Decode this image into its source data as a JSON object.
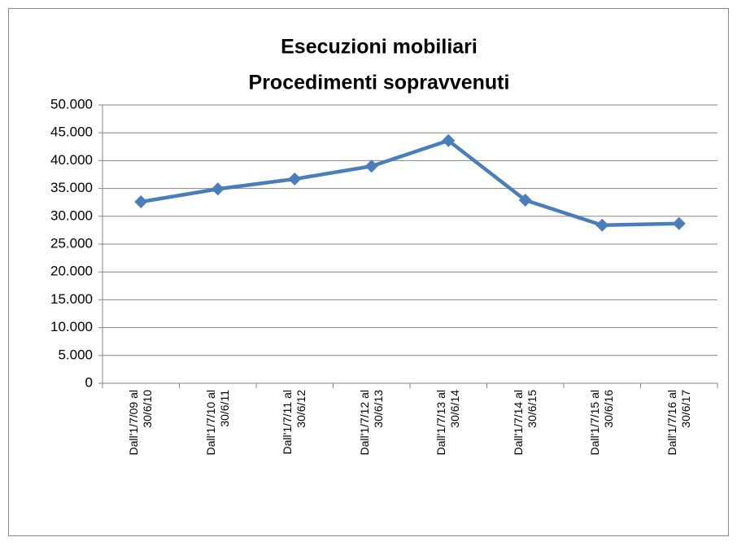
{
  "chart_data": {
    "type": "line",
    "title": [
      "Esecuzioni mobiliari",
      "Procedimenti sopravvenuti"
    ],
    "categories": [
      "Dall'1/7/09 al 30/6/10",
      "Dall'1/7/10 al 30/6/11",
      "Dall'1/7/11 al 30/6/12",
      "Dall'1/7/12 al 30/6/13",
      "Dall'1/7/13 al 30/6/14",
      "Dall'1/7/14 al 30/6/15",
      "Dall'1/7/15 al 30/6/16",
      "Dall'1/7/16 al 30/6/17"
    ],
    "series": [
      {
        "color": "#4a7ebb",
        "values": [
          32600,
          34900,
          36700,
          39000,
          43600,
          32900,
          28400,
          28700
        ]
      }
    ],
    "ylim": [
      0,
      50000
    ],
    "yticks": [
      0,
      {
        "value": 5000,
        "label": "5.000"
      },
      {
        "value": 10000,
        "label": "10.000"
      },
      {
        "value": 15000,
        "label": "15.000"
      },
      {
        "value": 20000,
        "label": "20.000"
      },
      {
        "value": 25000,
        "label": "25.000"
      },
      {
        "value": 30000,
        "label": "30.000"
      },
      {
        "value": 35000,
        "label": "35.000"
      },
      {
        "value": 40000,
        "label": "40.000"
      },
      {
        "value": 45000,
        "label": "45.000"
      },
      {
        "value": 50000,
        "label": "50.000"
      }
    ],
    "grid": true
  }
}
